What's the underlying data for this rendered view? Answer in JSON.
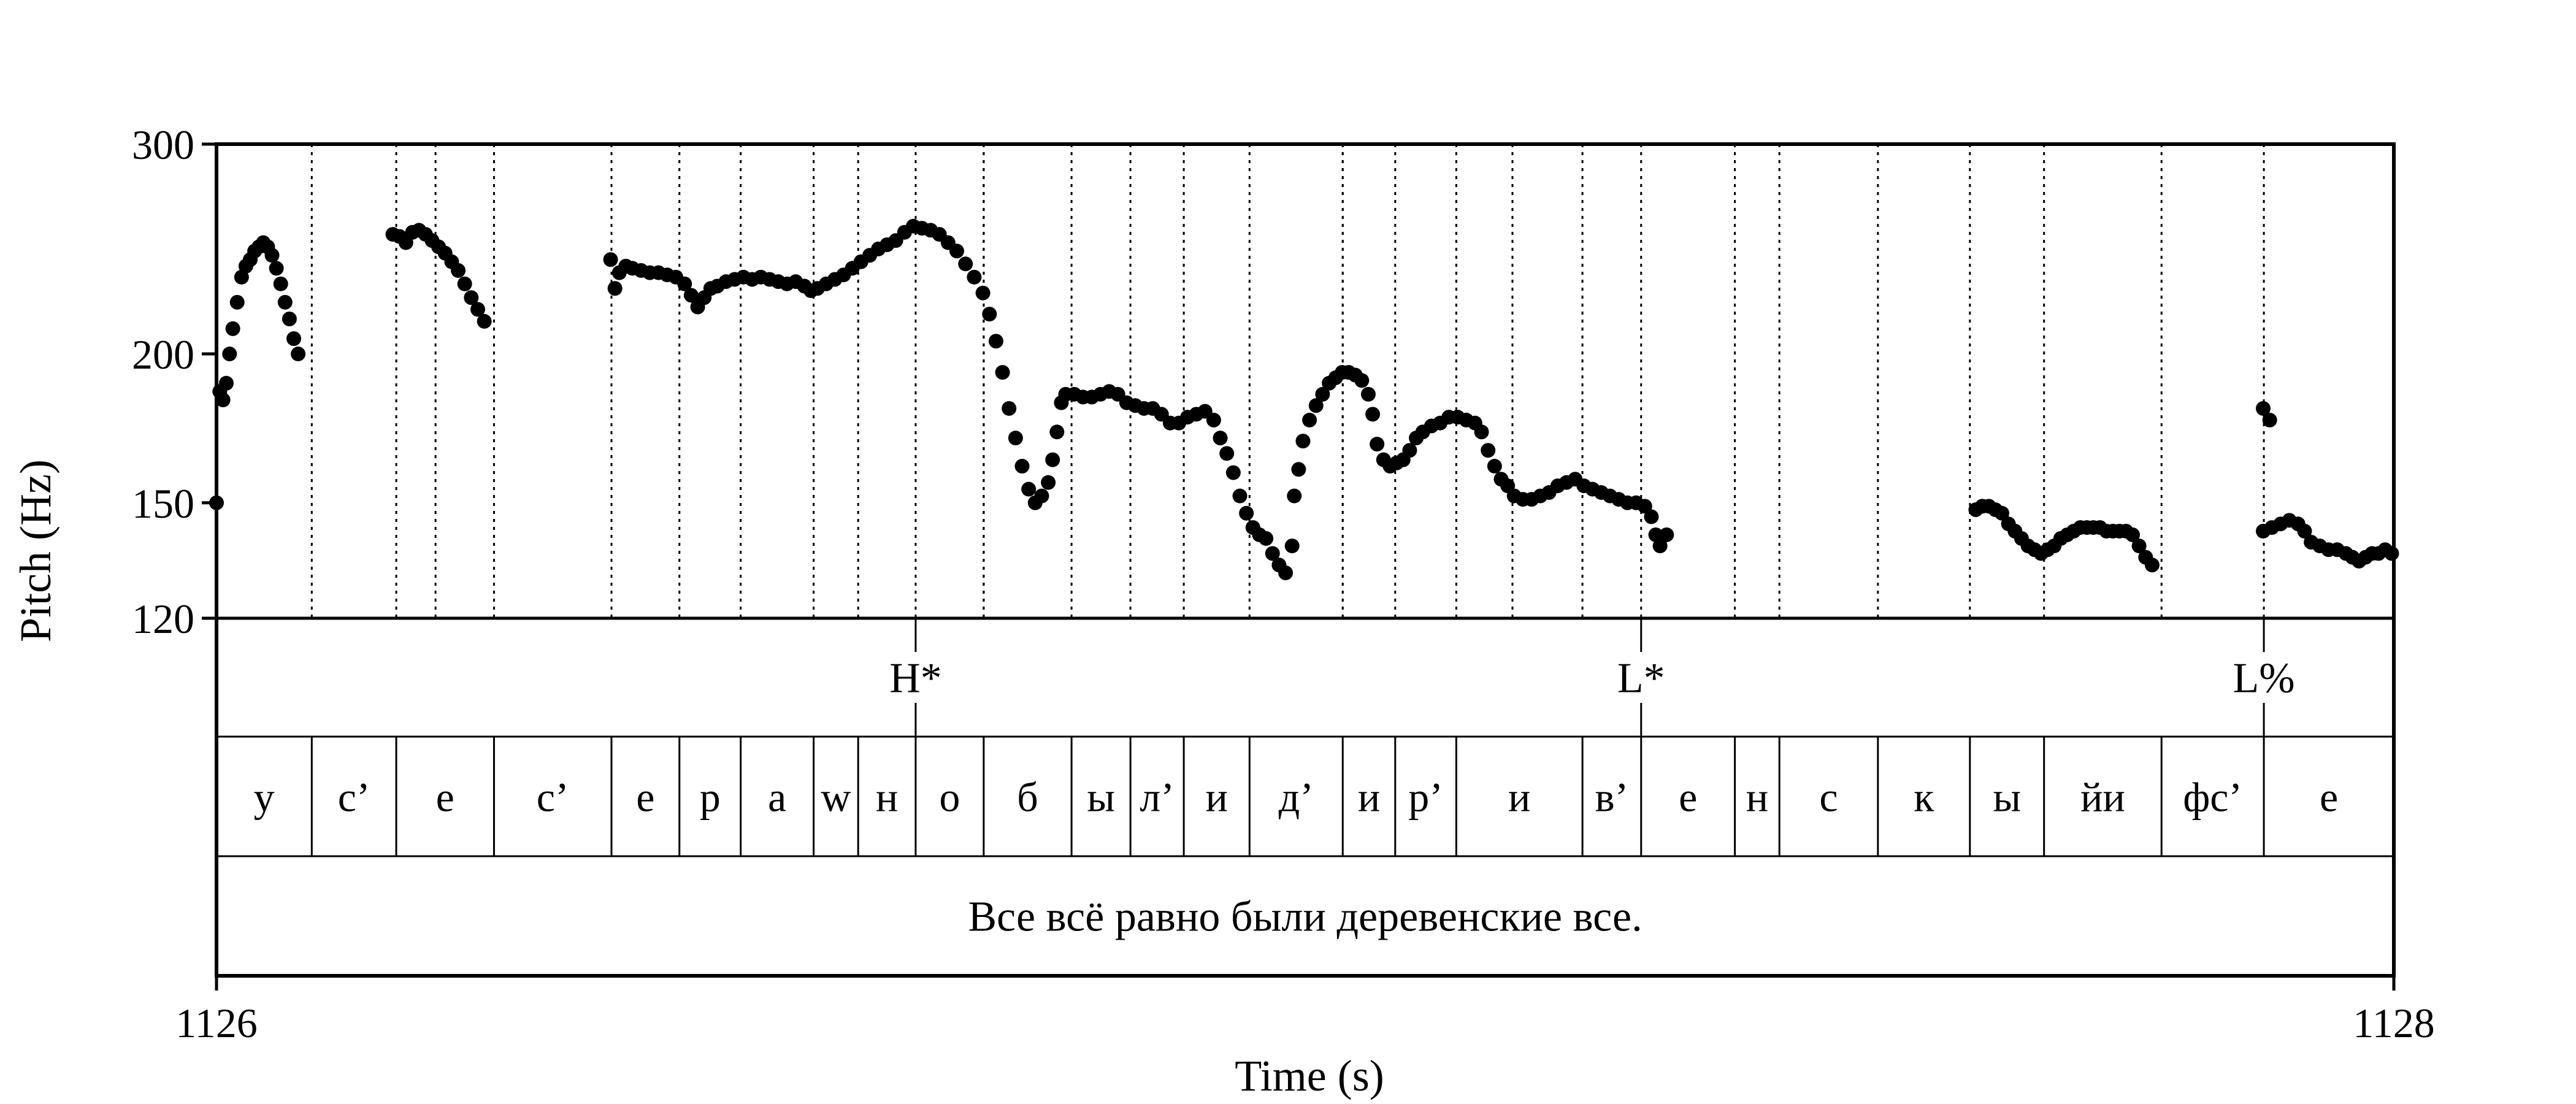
{
  "chart_data": {
    "type": "scatter",
    "title": "",
    "xlabel": "Time (s)",
    "ylabel": "Pitch (Hz)",
    "x_range": [
      1126,
      1128
    ],
    "y_range": [
      120,
      300
    ],
    "y_scale": "log",
    "x_ticks": [
      "1126",
      "1128"
    ],
    "y_ticks": [
      120,
      150,
      200,
      300
    ],
    "y_tick_labels": [
      "120",
      "150",
      "200",
      "300"
    ],
    "grid": false,
    "tones": [
      {
        "label": "H*",
        "time": 1126.6422
      },
      {
        "label": "L*",
        "time": 1127.3086
      },
      {
        "label": "L%",
        "time": 1127.8806
      }
    ],
    "segments": [
      {
        "label": "у",
        "start": 1126.0,
        "end": 1126.0875
      },
      {
        "label": "с’",
        "start": 1126.0875,
        "end": 1126.1651
      },
      {
        "label": "е",
        "start": 1126.1651,
        "end": 1126.2549
      },
      {
        "label": "с’",
        "start": 1126.2549,
        "end": 1126.3628
      },
      {
        "label": "е",
        "start": 1126.3628,
        "end": 1126.4252
      },
      {
        "label": "р",
        "start": 1126.4252,
        "end": 1126.4815
      },
      {
        "label": "а",
        "start": 1126.4815,
        "end": 1126.5485
      },
      {
        "label": "w",
        "start": 1126.5485,
        "end": 1126.5894
      },
      {
        "label": "н",
        "start": 1126.5894,
        "end": 1126.6422
      },
      {
        "label": "о",
        "start": 1126.6422,
        "end": 1126.7047
      },
      {
        "label": "б",
        "start": 1126.7047,
        "end": 1126.7854
      },
      {
        "label": "ы",
        "start": 1126.7854,
        "end": 1126.8395
      },
      {
        "label": "л’",
        "start": 1126.8395,
        "end": 1126.8885
      },
      {
        "label": "и",
        "start": 1126.8885,
        "end": 1126.9489
      },
      {
        "label": "д’",
        "start": 1126.9489,
        "end": 1127.0345
      },
      {
        "label": "и",
        "start": 1127.0345,
        "end": 1127.0827
      },
      {
        "label": "р’",
        "start": 1127.0827,
        "end": 1127.1388
      },
      {
        "label": "и",
        "start": 1127.1388,
        "end": 1127.2547
      },
      {
        "label": "в’",
        "start": 1127.2547,
        "end": 1127.3086
      },
      {
        "label": "е",
        "start": 1127.3086,
        "end": 1127.3947
      },
      {
        "label": "н",
        "start": 1127.3947,
        "end": 1127.4356
      },
      {
        "label": "с",
        "start": 1127.4356,
        "end": 1127.5261
      },
      {
        "label": "к",
        "start": 1127.5261,
        "end": 1127.6106
      },
      {
        "label": "ы",
        "start": 1127.6106,
        "end": 1127.6787
      },
      {
        "label": "йи",
        "start": 1127.6787,
        "end": 1127.7866
      },
      {
        "label": "фс’",
        "start": 1127.7866,
        "end": 1127.8806
      },
      {
        "label": "е",
        "start": 1127.8806,
        "end": 1128.0
      }
    ],
    "boundaries_dotted_only": [
      1126.2012,
      1126.7047,
      1127.0345,
      1127.1904
    ],
    "sentence": "Все всё равно были деревенские все.",
    "series": [
      {
        "points": [
          [
            1126.0,
            150
          ],
          [
            1126.003,
            186
          ],
          [
            1126.006,
            183
          ],
          [
            1126.009,
            189
          ],
          [
            1126.012,
            200
          ],
          [
            1126.015,
            210
          ],
          [
            1126.019,
            221
          ],
          [
            1126.023,
            232
          ],
          [
            1126.027,
            237
          ],
          [
            1126.031,
            240
          ],
          [
            1126.035,
            244
          ],
          [
            1126.039,
            246
          ],
          [
            1126.043,
            248
          ],
          [
            1126.047,
            246
          ],
          [
            1126.051,
            242
          ],
          [
            1126.055,
            236
          ],
          [
            1126.059,
            229
          ],
          [
            1126.063,
            221
          ],
          [
            1126.067,
            214
          ],
          [
            1126.071,
            206
          ],
          [
            1126.075,
            200
          ],
          [
            1126.162,
            252
          ],
          [
            1126.168,
            251
          ],
          [
            1126.174,
            248
          ],
          [
            1126.18,
            253
          ],
          [
            1126.186,
            254
          ],
          [
            1126.192,
            252
          ],
          [
            1126.198,
            249
          ],
          [
            1126.204,
            246
          ],
          [
            1126.21,
            243
          ],
          [
            1126.216,
            239
          ],
          [
            1126.222,
            235
          ],
          [
            1126.228,
            229
          ],
          [
            1126.234,
            223
          ],
          [
            1126.24,
            218
          ],
          [
            1126.246,
            213
          ],
          [
            1126.362,
            240
          ],
          [
            1126.366,
            227
          ],
          [
            1126.37,
            234
          ],
          [
            1126.376,
            237
          ],
          [
            1126.382,
            236
          ],
          [
            1126.39,
            235
          ],
          [
            1126.398,
            234
          ],
          [
            1126.406,
            234
          ],
          [
            1126.414,
            233
          ],
          [
            1126.422,
            232
          ],
          [
            1126.43,
            229
          ],
          [
            1126.436,
            224
          ],
          [
            1126.442,
            219
          ],
          [
            1126.448,
            223
          ],
          [
            1126.454,
            227
          ],
          [
            1126.46,
            228
          ],
          [
            1126.468,
            230
          ],
          [
            1126.476,
            231
          ],
          [
            1126.484,
            232
          ],
          [
            1126.492,
            231
          ],
          [
            1126.5,
            232
          ],
          [
            1126.508,
            231
          ],
          [
            1126.516,
            230
          ],
          [
            1126.524,
            229
          ],
          [
            1126.532,
            230
          ],
          [
            1126.54,
            228
          ],
          [
            1126.546,
            226
          ],
          [
            1126.552,
            227
          ],
          [
            1126.56,
            229
          ],
          [
            1126.568,
            231
          ],
          [
            1126.576,
            233
          ],
          [
            1126.584,
            236
          ],
          [
            1126.592,
            239
          ],
          [
            1126.6,
            242
          ],
          [
            1126.608,
            245
          ],
          [
            1126.616,
            247
          ],
          [
            1126.624,
            249
          ],
          [
            1126.632,
            253
          ],
          [
            1126.64,
            256
          ],
          [
            1126.648,
            255
          ],
          [
            1126.656,
            254
          ],
          [
            1126.664,
            252
          ],
          [
            1126.672,
            248
          ],
          [
            1126.68,
            244
          ],
          [
            1126.688,
            238
          ],
          [
            1126.696,
            232
          ],
          [
            1126.704,
            225
          ],
          [
            1126.71,
            216
          ],
          [
            1126.716,
            205
          ],
          [
            1126.722,
            193
          ],
          [
            1126.728,
            180
          ],
          [
            1126.734,
            170
          ],
          [
            1126.74,
            161
          ],
          [
            1126.746,
            154
          ],
          [
            1126.752,
            150
          ],
          [
            1126.758,
            152
          ],
          [
            1126.764,
            156
          ],
          [
            1126.768,
            163
          ],
          [
            1126.772,
            172
          ],
          [
            1126.776,
            182
          ],
          [
            1126.78,
            185
          ],
          [
            1126.788,
            185
          ],
          [
            1126.796,
            184
          ],
          [
            1126.804,
            184
          ],
          [
            1126.812,
            185
          ],
          [
            1126.82,
            186
          ],
          [
            1126.828,
            185
          ],
          [
            1126.836,
            182
          ],
          [
            1126.844,
            181
          ],
          [
            1126.852,
            180
          ],
          [
            1126.86,
            180
          ],
          [
            1126.868,
            178
          ],
          [
            1126.876,
            175
          ],
          [
            1126.884,
            175
          ],
          [
            1126.892,
            177
          ],
          [
            1126.9,
            178
          ],
          [
            1126.908,
            179
          ],
          [
            1126.916,
            176
          ],
          [
            1126.922,
            170
          ],
          [
            1126.928,
            165
          ],
          [
            1126.934,
            159
          ],
          [
            1126.94,
            152
          ],
          [
            1126.946,
            147
          ],
          [
            1126.952,
            143
          ],
          [
            1126.958,
            141
          ],
          [
            1126.964,
            140
          ],
          [
            1126.97,
            136
          ],
          [
            1126.976,
            133
          ],
          [
            1126.982,
            131
          ],
          [
            1126.988,
            138
          ],
          [
            1126.99,
            152
          ],
          [
            1126.994,
            160
          ],
          [
            1126.998,
            169
          ],
          [
            1127.004,
            176
          ],
          [
            1127.01,
            181
          ],
          [
            1127.016,
            185
          ],
          [
            1127.022,
            189
          ],
          [
            1127.028,
            191
          ],
          [
            1127.034,
            193
          ],
          [
            1127.04,
            193
          ],
          [
            1127.046,
            192
          ],
          [
            1127.052,
            190
          ],
          [
            1127.058,
            185
          ],
          [
            1127.062,
            178
          ],
          [
            1127.066,
            168
          ],
          [
            1127.072,
            163
          ],
          [
            1127.078,
            161
          ],
          [
            1127.084,
            162
          ],
          [
            1127.09,
            163
          ],
          [
            1127.096,
            166
          ],
          [
            1127.102,
            170
          ],
          [
            1127.108,
            172
          ],
          [
            1127.116,
            174
          ],
          [
            1127.124,
            175
          ],
          [
            1127.132,
            177
          ],
          [
            1127.14,
            177
          ],
          [
            1127.148,
            176
          ],
          [
            1127.156,
            175
          ],
          [
            1127.162,
            172
          ],
          [
            1127.168,
            166
          ],
          [
            1127.174,
            161
          ],
          [
            1127.18,
            157
          ],
          [
            1127.186,
            155
          ],
          [
            1127.192,
            152
          ],
          [
            1127.2,
            151
          ],
          [
            1127.208,
            151
          ],
          [
            1127.216,
            152
          ],
          [
            1127.224,
            153
          ],
          [
            1127.232,
            155
          ],
          [
            1127.24,
            156
          ],
          [
            1127.248,
            157
          ],
          [
            1127.256,
            155
          ],
          [
            1127.264,
            154
          ],
          [
            1127.272,
            153
          ],
          [
            1127.28,
            152
          ],
          [
            1127.288,
            151
          ],
          [
            1127.296,
            150
          ],
          [
            1127.304,
            150
          ],
          [
            1127.312,
            149
          ],
          [
            1127.318,
            146
          ],
          [
            1127.322,
            141
          ],
          [
            1127.326,
            138
          ],
          [
            1127.332,
            141
          ],
          [
            1127.616,
            148
          ],
          [
            1127.622,
            149
          ],
          [
            1127.628,
            149
          ],
          [
            1127.634,
            148
          ],
          [
            1127.64,
            147
          ],
          [
            1127.646,
            144
          ],
          [
            1127.652,
            142
          ],
          [
            1127.658,
            140
          ],
          [
            1127.664,
            138
          ],
          [
            1127.67,
            137
          ],
          [
            1127.676,
            136
          ],
          [
            1127.682,
            137
          ],
          [
            1127.688,
            138
          ],
          [
            1127.694,
            140
          ],
          [
            1127.7,
            141
          ],
          [
            1127.706,
            142
          ],
          [
            1127.712,
            143
          ],
          [
            1127.718,
            143
          ],
          [
            1127.724,
            143
          ],
          [
            1127.73,
            143
          ],
          [
            1127.736,
            142
          ],
          [
            1127.742,
            142
          ],
          [
            1127.748,
            142
          ],
          [
            1127.754,
            142
          ],
          [
            1127.76,
            141
          ],
          [
            1127.766,
            138
          ],
          [
            1127.772,
            135
          ],
          [
            1127.778,
            133
          ],
          [
            1127.88,
            180
          ],
          [
            1127.886,
            176
          ],
          [
            1127.88,
            142
          ],
          [
            1127.888,
            143
          ],
          [
            1127.896,
            144
          ],
          [
            1127.904,
            145
          ],
          [
            1127.912,
            144
          ],
          [
            1127.918,
            142
          ],
          [
            1127.924,
            139
          ],
          [
            1127.932,
            138
          ],
          [
            1127.94,
            137
          ],
          [
            1127.948,
            137
          ],
          [
            1127.956,
            136
          ],
          [
            1127.962,
            135
          ],
          [
            1127.968,
            134
          ],
          [
            1127.974,
            135
          ],
          [
            1127.98,
            136
          ],
          [
            1127.986,
            136
          ],
          [
            1127.992,
            137
          ],
          [
            1127.998,
            136
          ]
        ]
      }
    ]
  }
}
